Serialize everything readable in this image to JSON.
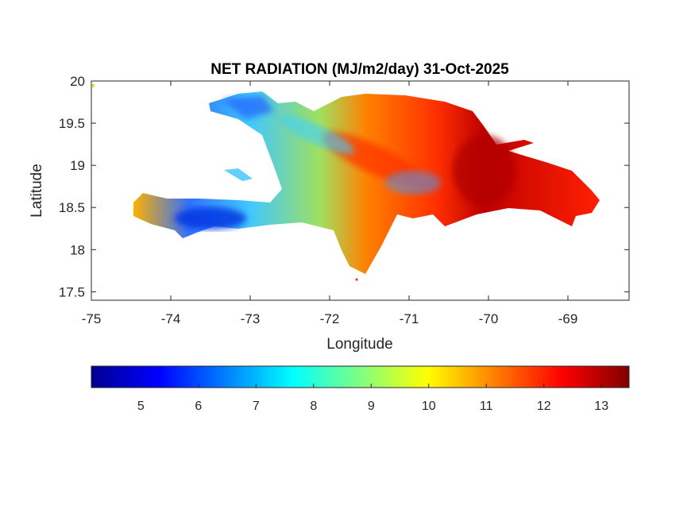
{
  "chart_data": {
    "type": "heatmap",
    "title": "NET RADIATION (MJ/m2/day) 31-Oct-2025",
    "xlabel": "Longitude",
    "ylabel": "Latitude",
    "xlim": [
      -75,
      -68.23
    ],
    "ylim": [
      17.4,
      20
    ],
    "xticks": [
      -75,
      -74,
      -73,
      -72,
      -71,
      -70,
      -69
    ],
    "xtick_labels": [
      "-75",
      "-74",
      "-73",
      "-72",
      "-71",
      "-70",
      "-69"
    ],
    "yticks": [
      17.5,
      18,
      18.5,
      19,
      19.5,
      20
    ],
    "ytick_labels": [
      "17.5",
      "18",
      "18.5",
      "19",
      "19.5",
      "20"
    ],
    "colorbar": {
      "colormap": "jet",
      "range": [
        4.14,
        13.48
      ],
      "ticks": [
        5,
        6,
        7,
        8,
        9,
        10,
        11,
        12,
        13
      ],
      "tick_labels": [
        "5",
        "6",
        "7",
        "8",
        "9",
        "10",
        "11",
        "12",
        "13"
      ],
      "placement": "bottom"
    },
    "grid": false
  }
}
